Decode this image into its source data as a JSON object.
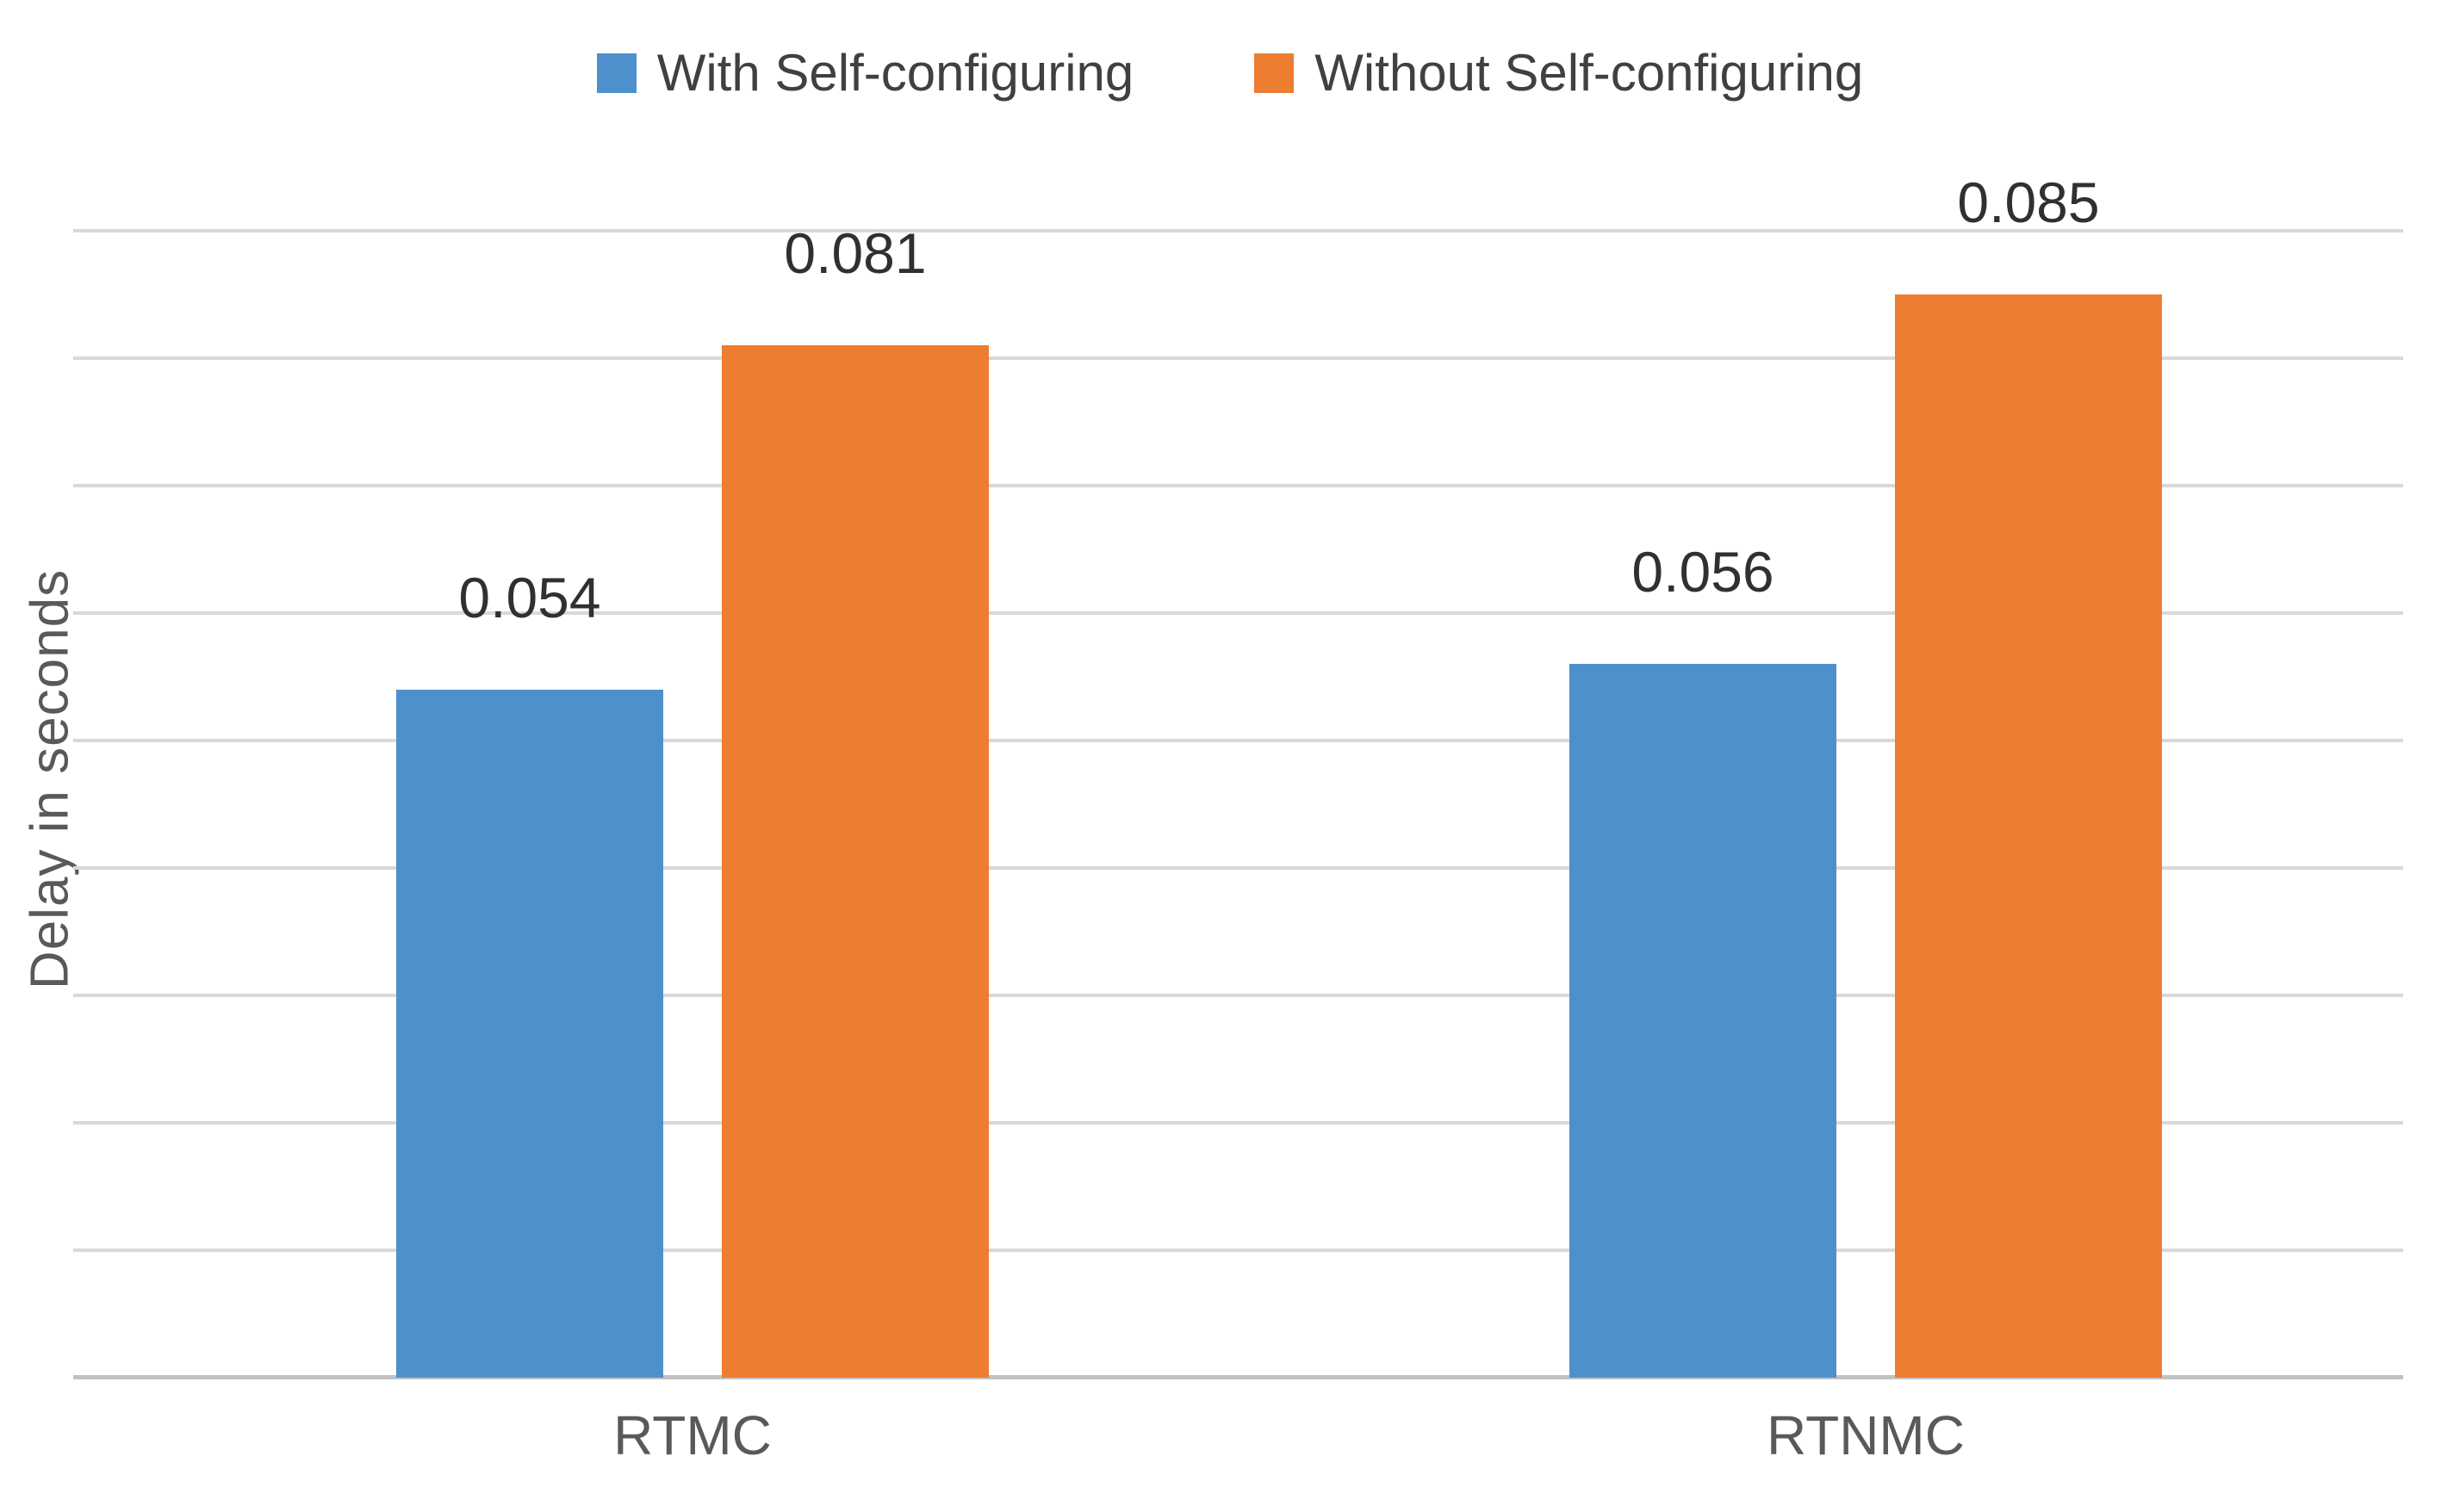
{
  "chart_data": {
    "type": "bar",
    "title": "",
    "xlabel": "",
    "ylabel": "Delay in seconds",
    "categories": [
      "RTMC",
      "RTNMC"
    ],
    "series": [
      {
        "name": "With Self-configuring",
        "color": "#4d90cc",
        "values": [
          0.054,
          0.056
        ],
        "value_labels": [
          "0.054",
          "0.056"
        ]
      },
      {
        "name": "Without Self-configuring",
        "color": "#ed7d31",
        "values": [
          0.081,
          0.085
        ],
        "value_labels": [
          "0.081",
          "0.085"
        ]
      }
    ],
    "ylim": [
      0,
      0.09
    ],
    "grid_step": 0.01,
    "grid": "horizontal-only",
    "y_tick_labels_visible": false,
    "legend_position": "top",
    "gridline_color": "#d9d9d9",
    "axis_line_color": "#c2c2c2",
    "value_label_color": "#303030",
    "category_label_color": "#595959"
  }
}
